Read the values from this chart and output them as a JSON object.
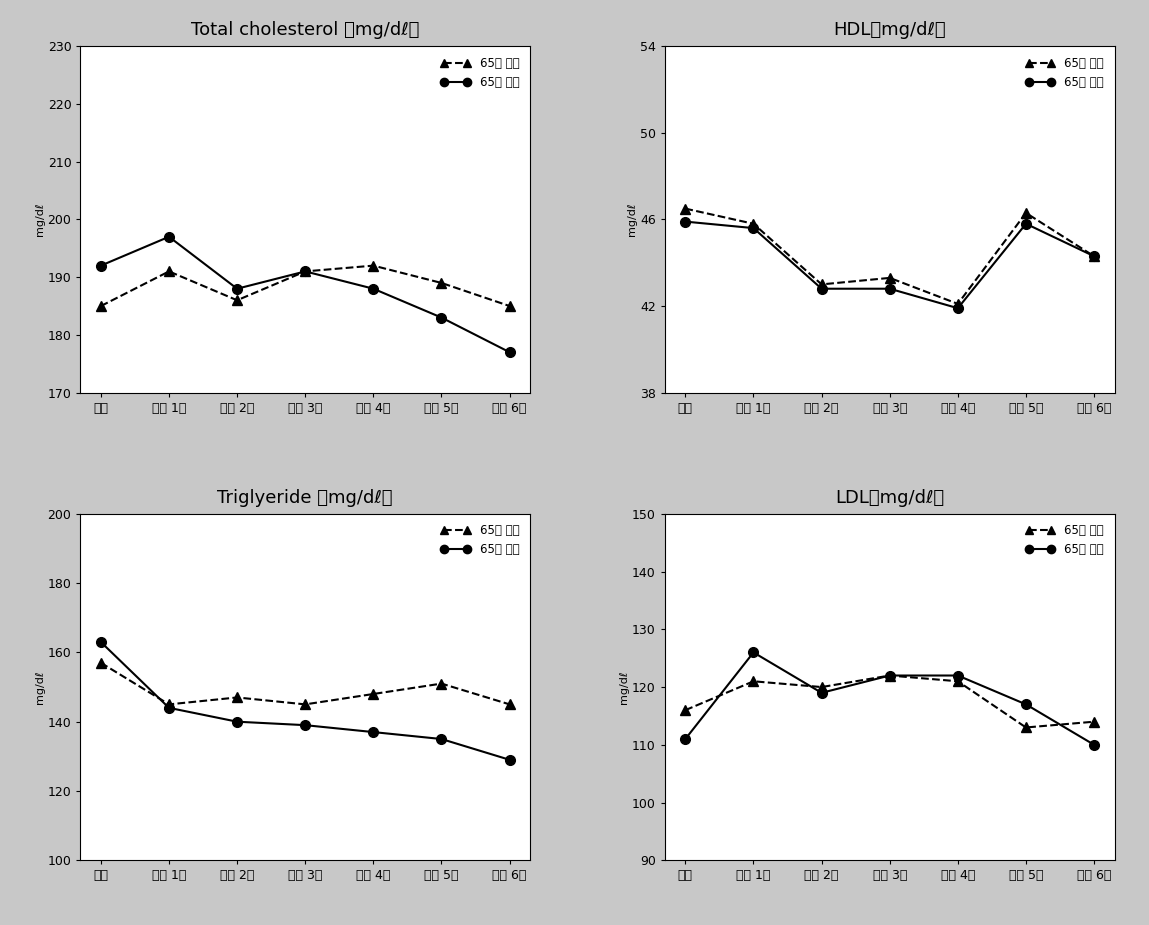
{
  "x_labels": [
    "기초",
    "추적 1기",
    "추적 2기",
    "추적 3기",
    "추적 4기",
    "추적 5기",
    "추적 6기"
  ],
  "total_cholesterol": {
    "title": "Total cholesterol （mg/dℓ）",
    "under65": [
      185,
      191,
      186,
      191,
      192,
      189,
      185
    ],
    "over65": [
      192,
      197,
      188,
      191,
      188,
      183,
      177
    ],
    "ylim": [
      170,
      230
    ],
    "yticks": [
      170,
      180,
      190,
      200,
      210,
      220,
      230
    ],
    "ylabel": "mg/dℓ"
  },
  "hdl": {
    "title": "HDL（mg/dℓ）",
    "under65": [
      46.5,
      45.8,
      43.0,
      43.3,
      42.1,
      46.3,
      44.3
    ],
    "over65": [
      45.9,
      45.6,
      42.8,
      42.8,
      41.9,
      45.8,
      44.3
    ],
    "ylim": [
      38,
      54
    ],
    "yticks": [
      38,
      42,
      46,
      50,
      54
    ],
    "ylabel": "mg/dℓ"
  },
  "triglyceride": {
    "title": "Triglyeride （mg/dℓ）",
    "under65": [
      157,
      145,
      147,
      145,
      148,
      151,
      145
    ],
    "over65": [
      163,
      144,
      140,
      139,
      137,
      135,
      129
    ],
    "ylim": [
      100,
      200
    ],
    "yticks": [
      100,
      120,
      140,
      160,
      180,
      200
    ],
    "ylabel": "mg/dℓ"
  },
  "ldl": {
    "title": "LDL（mg/dℓ）",
    "under65": [
      116,
      121,
      120,
      122,
      121,
      113,
      114
    ],
    "over65": [
      111,
      126,
      119,
      122,
      122,
      117,
      110
    ],
    "ylim": [
      90,
      150
    ],
    "yticks": [
      90,
      100,
      110,
      120,
      130,
      140,
      150
    ],
    "ylabel": "mg/dℓ"
  },
  "legend_under65": "65세 미만",
  "legend_over65": "65세 이상",
  "color_line": "#000000",
  "background_color": "#ffffff",
  "outer_bg": "#c8c8c8"
}
